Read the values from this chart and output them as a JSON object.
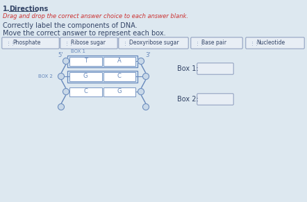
{
  "bg_color": "#dde8f0",
  "title_number": "1.",
  "title_text": "Directions",
  "subtitle_italic": "Drag and drop the correct answer choice to each answer blank.",
  "instruction1": "Correctly label the components of DNA.",
  "instruction2": "Move the correct answer to represent each box.",
  "answer_choices": [
    "Phosphate",
    "Ribose sugar",
    "Deoxyribose sugar",
    "Base pair",
    "Nucleotide"
  ],
  "answer_box_border": "#8899bb",
  "dna_box1_label": "BOX 1",
  "dna_box2_label": "BOX 2",
  "dna_base_pairs": [
    [
      "T",
      "A"
    ],
    [
      "G",
      "C"
    ],
    [
      "C",
      "G"
    ]
  ],
  "dna_strand_color": "#6688bb",
  "dna_circle_color": "#c8d8e8",
  "label_box1": "Box 1:",
  "label_box2": "Box 2:",
  "strand_label_5": "5'",
  "strand_label_3": "3'",
  "text_color": "#334466",
  "red_italic_color": "#cc3333",
  "underline_color": "#334466"
}
